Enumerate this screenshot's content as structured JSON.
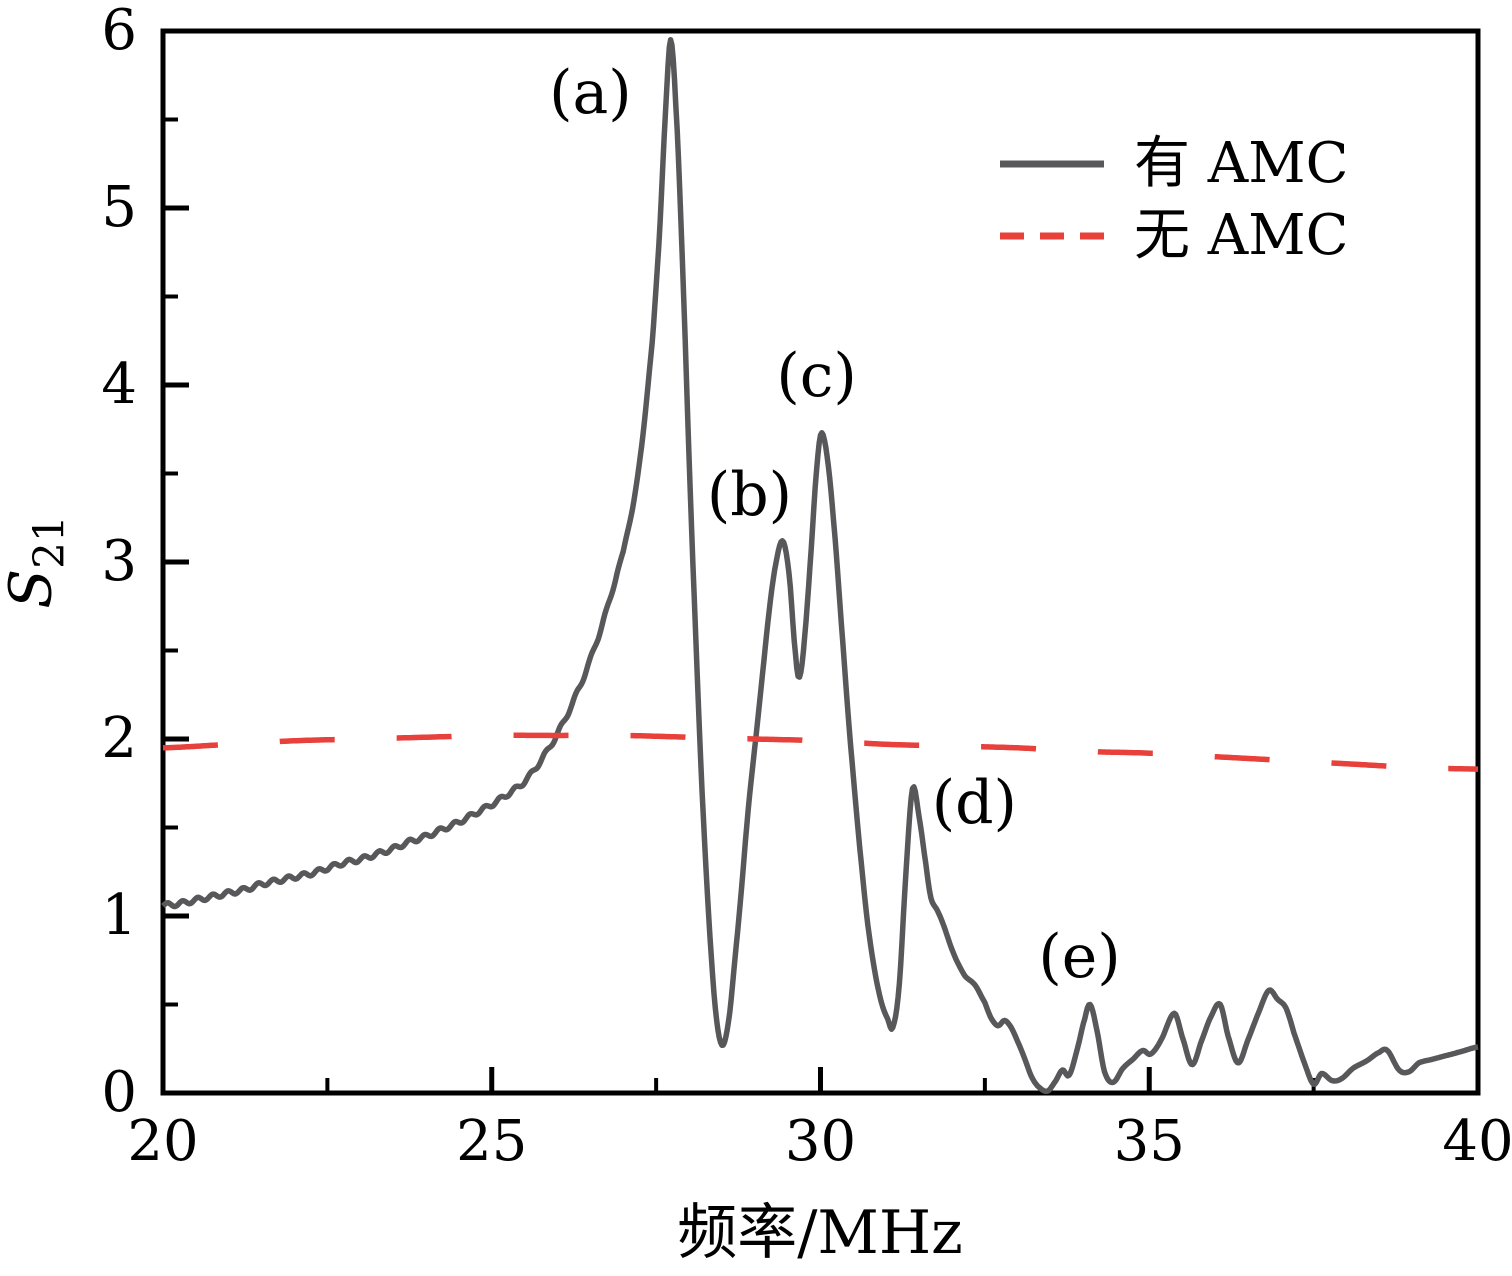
{
  "figure": {
    "background": "#ffffff"
  },
  "chart_data": {
    "type": "line",
    "title": "",
    "xlabel": "频率/MHz",
    "ylabel_base": "S",
    "ylabel_sub": "21",
    "xlim": [
      20,
      40
    ],
    "ylim": [
      0,
      6
    ],
    "grid": false,
    "x_major_ticks": [
      20,
      25,
      30,
      35,
      40
    ],
    "x_minor_ticks": [
      22.5,
      27.5,
      32.5,
      37.5
    ],
    "y_major_ticks": [
      0,
      1,
      2,
      3,
      4,
      5,
      6
    ],
    "y_minor_ticks": [
      0.5,
      1.5,
      2.5,
      3.5,
      4.5,
      5.5
    ],
    "axis_color": "#000000",
    "legend": {
      "position": "top-right",
      "entries": [
        {
          "label": "有 AMC",
          "style": "solid",
          "color": "#58585A"
        },
        {
          "label": "无 AMC",
          "style": "dashed",
          "color": "#E8413C"
        }
      ]
    },
    "annotations": [
      {
        "text": "(a)",
        "x": 26.5,
        "y": 5.65
      },
      {
        "text": "(b)",
        "x": 28.92,
        "y": 3.38
      },
      {
        "text": "(c)",
        "x": 29.94,
        "y": 4.05
      },
      {
        "text": "(d)",
        "x": 32.34,
        "y": 1.64
      },
      {
        "text": "(e)",
        "x": 33.94,
        "y": 0.77
      }
    ],
    "series": [
      {
        "name": "有 AMC",
        "color": "#58585A",
        "style": "solid",
        "points": [
          [
            20,
            1.06
          ],
          [
            20.25,
            1.07
          ],
          [
            20.5,
            1.09
          ],
          [
            20.75,
            1.11
          ],
          [
            21,
            1.13
          ],
          [
            21.25,
            1.15
          ],
          [
            21.5,
            1.18
          ],
          [
            21.75,
            1.2
          ],
          [
            22,
            1.22
          ],
          [
            22.25,
            1.24
          ],
          [
            22.5,
            1.27
          ],
          [
            22.75,
            1.3
          ],
          [
            23,
            1.32
          ],
          [
            23.25,
            1.35
          ],
          [
            23.5,
            1.38
          ],
          [
            23.75,
            1.42
          ],
          [
            24,
            1.45
          ],
          [
            24.25,
            1.49
          ],
          [
            24.5,
            1.53
          ],
          [
            24.75,
            1.58
          ],
          [
            25,
            1.63
          ],
          [
            25.25,
            1.69
          ],
          [
            25.5,
            1.76
          ],
          [
            25.75,
            1.88
          ],
          [
            26,
            2.03
          ],
          [
            26.25,
            2.22
          ],
          [
            26.5,
            2.45
          ],
          [
            26.75,
            2.73
          ],
          [
            27,
            3.06
          ],
          [
            27.15,
            3.32
          ],
          [
            27.3,
            3.72
          ],
          [
            27.45,
            4.28
          ],
          [
            27.55,
            4.85
          ],
          [
            27.65,
            5.58
          ],
          [
            27.72,
            5.95
          ],
          [
            27.8,
            5.58
          ],
          [
            27.9,
            4.7
          ],
          [
            28,
            3.6
          ],
          [
            28.1,
            2.6
          ],
          [
            28.2,
            1.7
          ],
          [
            28.3,
            1.0
          ],
          [
            28.4,
            0.48
          ],
          [
            28.5,
            0.27
          ],
          [
            28.6,
            0.4
          ],
          [
            28.7,
            0.76
          ],
          [
            28.8,
            1.16
          ],
          [
            28.9,
            1.6
          ],
          [
            29,
            1.95
          ],
          [
            29.1,
            2.3
          ],
          [
            29.2,
            2.66
          ],
          [
            29.3,
            2.95
          ],
          [
            29.42,
            3.12
          ],
          [
            29.52,
            2.94
          ],
          [
            29.62,
            2.48
          ],
          [
            29.68,
            2.35
          ],
          [
            29.76,
            2.58
          ],
          [
            29.86,
            3.08
          ],
          [
            29.95,
            3.56
          ],
          [
            30.02,
            3.73
          ],
          [
            30.12,
            3.54
          ],
          [
            30.22,
            3.14
          ],
          [
            30.32,
            2.64
          ],
          [
            30.42,
            2.14
          ],
          [
            30.52,
            1.7
          ],
          [
            30.62,
            1.3
          ],
          [
            30.72,
            0.95
          ],
          [
            30.82,
            0.7
          ],
          [
            30.92,
            0.52
          ],
          [
            31.02,
            0.42
          ],
          [
            31.1,
            0.37
          ],
          [
            31.2,
            0.62
          ],
          [
            31.3,
            1.25
          ],
          [
            31.4,
            1.72
          ],
          [
            31.5,
            1.56
          ],
          [
            31.6,
            1.3
          ],
          [
            31.68,
            1.1
          ],
          [
            31.78,
            1.03
          ],
          [
            31.88,
            0.94
          ],
          [
            31.98,
            0.83
          ],
          [
            32.08,
            0.74
          ],
          [
            32.2,
            0.66
          ],
          [
            32.35,
            0.61
          ],
          [
            32.5,
            0.51
          ],
          [
            32.6,
            0.42
          ],
          [
            32.7,
            0.38
          ],
          [
            32.8,
            0.41
          ],
          [
            32.9,
            0.37
          ],
          [
            33,
            0.29
          ],
          [
            33.1,
            0.2
          ],
          [
            33.2,
            0.1
          ],
          [
            33.3,
            0.04
          ],
          [
            33.45,
            0.01
          ],
          [
            33.58,
            0.07
          ],
          [
            33.68,
            0.13
          ],
          [
            33.78,
            0.1
          ],
          [
            33.9,
            0.24
          ],
          [
            34.02,
            0.42
          ],
          [
            34.1,
            0.5
          ],
          [
            34.2,
            0.36
          ],
          [
            34.32,
            0.12
          ],
          [
            34.45,
            0.06
          ],
          [
            34.6,
            0.14
          ],
          [
            34.75,
            0.19
          ],
          [
            34.9,
            0.24
          ],
          [
            35.02,
            0.22
          ],
          [
            35.18,
            0.3
          ],
          [
            35.38,
            0.45
          ],
          [
            35.5,
            0.32
          ],
          [
            35.65,
            0.16
          ],
          [
            35.8,
            0.3
          ],
          [
            35.95,
            0.44
          ],
          [
            36.08,
            0.5
          ],
          [
            36.2,
            0.32
          ],
          [
            36.35,
            0.17
          ],
          [
            36.5,
            0.3
          ],
          [
            36.67,
            0.46
          ],
          [
            36.82,
            0.58
          ],
          [
            36.95,
            0.53
          ],
          [
            37.08,
            0.48
          ],
          [
            37.2,
            0.34
          ],
          [
            37.35,
            0.18
          ],
          [
            37.5,
            0.05
          ],
          [
            37.62,
            0.11
          ],
          [
            37.78,
            0.07
          ],
          [
            37.92,
            0.08
          ],
          [
            38.1,
            0.14
          ],
          [
            38.3,
            0.18
          ],
          [
            38.5,
            0.23
          ],
          [
            38.62,
            0.24
          ],
          [
            38.8,
            0.13
          ],
          [
            38.95,
            0.12
          ],
          [
            39.1,
            0.17
          ],
          [
            39.3,
            0.19
          ],
          [
            39.5,
            0.21
          ],
          [
            39.7,
            0.23
          ],
          [
            40,
            0.26
          ]
        ]
      },
      {
        "name": "无 AMC",
        "color": "#E8413C",
        "style": "dashed",
        "points": [
          [
            20,
            1.95
          ],
          [
            21,
            1.97
          ],
          [
            22,
            1.99
          ],
          [
            23,
            2.0
          ],
          [
            24,
            2.01
          ],
          [
            25,
            2.02
          ],
          [
            26,
            2.02
          ],
          [
            27,
            2.02
          ],
          [
            28,
            2.01
          ],
          [
            29,
            2.0
          ],
          [
            30,
            1.99
          ],
          [
            31,
            1.97
          ],
          [
            32,
            1.96
          ],
          [
            33,
            1.95
          ],
          [
            34,
            1.93
          ],
          [
            35,
            1.92
          ],
          [
            36,
            1.9
          ],
          [
            37,
            1.88
          ],
          [
            38,
            1.86
          ],
          [
            39,
            1.84
          ],
          [
            40,
            1.83
          ]
        ]
      }
    ]
  }
}
